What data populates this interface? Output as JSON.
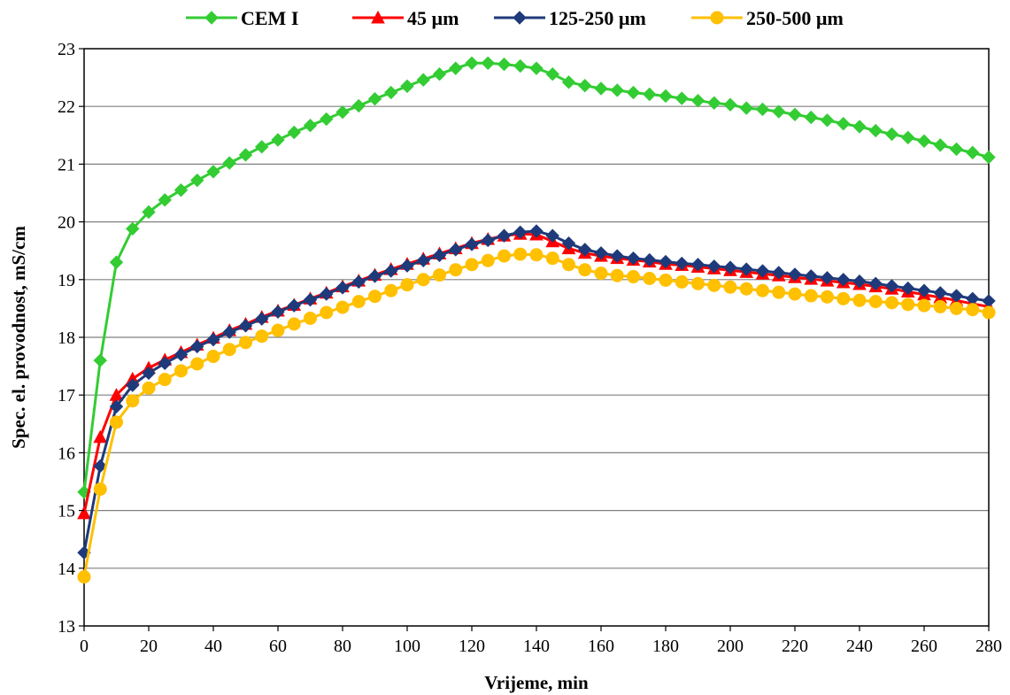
{
  "chart_data": {
    "type": "line",
    "xlabel": "Vrijeme, min",
    "ylabel": "Spec. el. provodnost, mS/cm",
    "xlim": [
      0,
      280
    ],
    "ylim": [
      13,
      23
    ],
    "xticks": [
      0,
      20,
      40,
      60,
      80,
      100,
      120,
      140,
      160,
      180,
      200,
      220,
      240,
      260,
      280
    ],
    "yticks": [
      13,
      14,
      15,
      16,
      17,
      18,
      19,
      20,
      21,
      22,
      23
    ],
    "grid": "horizontal",
    "legend_position": "top",
    "x": [
      0,
      5,
      10,
      15,
      20,
      25,
      30,
      35,
      40,
      45,
      50,
      55,
      60,
      65,
      70,
      75,
      80,
      85,
      90,
      95,
      100,
      105,
      110,
      115,
      120,
      125,
      130,
      135,
      140,
      145,
      150,
      155,
      160,
      165,
      170,
      175,
      180,
      185,
      190,
      195,
      200,
      205,
      210,
      215,
      220,
      225,
      230,
      235,
      240,
      245,
      250,
      255,
      260,
      265,
      270,
      275,
      280
    ],
    "series": [
      {
        "name": "CEM I",
        "color": "#33cc33",
        "marker": "diamond",
        "values": [
          15.32,
          17.6,
          19.3,
          19.88,
          20.17,
          20.38,
          20.55,
          20.72,
          20.87,
          21.02,
          21.16,
          21.3,
          21.42,
          21.55,
          21.67,
          21.78,
          21.9,
          22.01,
          22.13,
          22.24,
          22.35,
          22.46,
          22.56,
          22.66,
          22.75,
          22.75,
          22.73,
          22.7,
          22.66,
          22.56,
          22.42,
          22.36,
          22.31,
          22.28,
          22.24,
          22.21,
          22.18,
          22.14,
          22.1,
          22.06,
          22.03,
          21.97,
          21.95,
          21.91,
          21.86,
          21.81,
          21.76,
          21.7,
          21.65,
          21.58,
          21.52,
          21.46,
          21.4,
          21.33,
          21.26,
          21.2,
          21.12
        ]
      },
      {
        "name": "45 µm",
        "color": "#ff0000",
        "marker": "triangle",
        "values": [
          14.95,
          16.27,
          17.0,
          17.28,
          17.47,
          17.61,
          17.74,
          17.87,
          17.99,
          18.12,
          18.23,
          18.35,
          18.46,
          18.56,
          18.67,
          18.77,
          18.88,
          18.98,
          19.08,
          19.18,
          19.27,
          19.36,
          19.45,
          19.54,
          19.63,
          19.7,
          19.76,
          19.79,
          19.78,
          19.66,
          19.54,
          19.46,
          19.41,
          19.37,
          19.34,
          19.31,
          19.27,
          19.25,
          19.22,
          19.19,
          19.16,
          19.13,
          19.1,
          19.07,
          19.04,
          19.01,
          18.98,
          18.95,
          18.92,
          18.88,
          18.84,
          18.79,
          18.74,
          18.69,
          18.64,
          18.58,
          18.53
        ]
      },
      {
        "name": "125-250 µm",
        "color": "#1f3a7a",
        "marker": "diamond",
        "values": [
          14.27,
          15.77,
          16.8,
          17.17,
          17.38,
          17.55,
          17.7,
          17.84,
          17.96,
          18.09,
          18.2,
          18.32,
          18.44,
          18.55,
          18.65,
          18.75,
          18.86,
          18.96,
          19.06,
          19.15,
          19.24,
          19.33,
          19.42,
          19.52,
          19.61,
          19.68,
          19.76,
          19.82,
          19.84,
          19.76,
          19.63,
          19.52,
          19.46,
          19.41,
          19.37,
          19.34,
          19.31,
          19.28,
          19.26,
          19.23,
          19.21,
          19.18,
          19.15,
          19.12,
          19.09,
          19.06,
          19.03,
          19.0,
          18.97,
          18.93,
          18.89,
          18.85,
          18.81,
          18.77,
          18.72,
          18.67,
          18.63
        ]
      },
      {
        "name": "250-500 µm",
        "color": "#ffc000",
        "marker": "circle",
        "values": [
          13.85,
          15.37,
          16.53,
          16.9,
          17.12,
          17.27,
          17.42,
          17.54,
          17.67,
          17.79,
          17.91,
          18.02,
          18.12,
          18.23,
          18.33,
          18.43,
          18.52,
          18.62,
          18.71,
          18.81,
          18.91,
          19.0,
          19.08,
          19.17,
          19.26,
          19.33,
          19.41,
          19.44,
          19.43,
          19.37,
          19.26,
          19.17,
          19.11,
          19.07,
          19.05,
          19.02,
          18.99,
          18.96,
          18.93,
          18.9,
          18.87,
          18.84,
          18.81,
          18.78,
          18.75,
          18.72,
          18.7,
          18.67,
          18.64,
          18.62,
          18.6,
          18.57,
          18.55,
          18.53,
          18.5,
          18.48,
          18.43
        ]
      }
    ]
  }
}
